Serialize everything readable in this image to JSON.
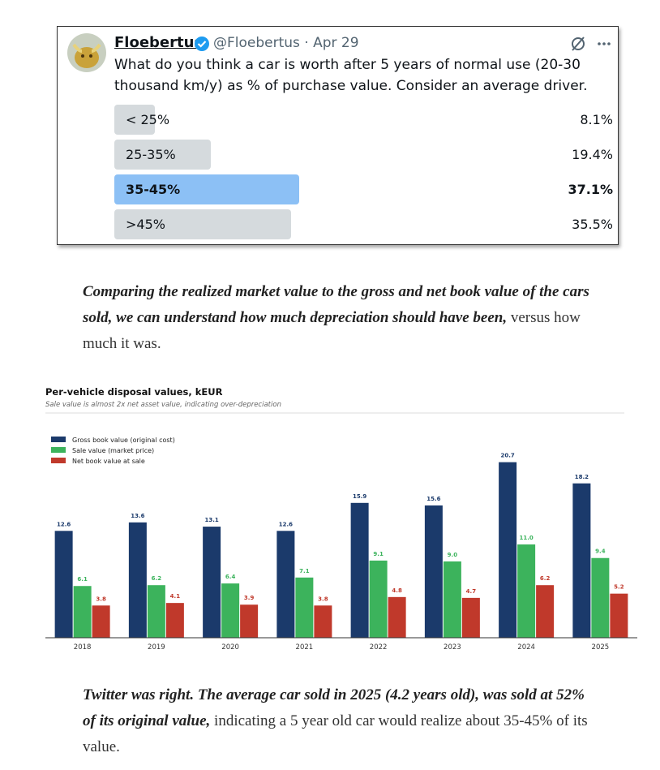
{
  "tweet": {
    "name": "Floebertus",
    "meta": "@Floebertus · Apr 29",
    "text": "What do you think a car is worth after 5 years of normal use (20-30 thousand km/y) as % of purchase value. Consider an average driver.",
    "poll": {
      "labels": [
        "< 25%",
        "25-35%",
        "35-45%",
        ">45%"
      ],
      "values": [
        8.1,
        19.4,
        37.1,
        35.5
      ],
      "value_labels": [
        "8.1%",
        "19.4%",
        "37.1%",
        "35.5%"
      ],
      "bar_color": "#d5dadd",
      "leading_color": "#8cc0f5"
    }
  },
  "paragraphs": [
    {
      "emphasis": "Comparing the realized market value to the gross and net book value of the cars sold, we can understand how much depreciation should have been,",
      "text": "versus how much it was."
    },
    {
      "emphasis": "Twitter was right. The average car sold in 2025 (4.2 years old), was sold at 52% of its original value,",
      "text": "indicating a 5 year old car would realize about 35-45% of its value."
    }
  ],
  "chart_data": {
    "type": "bar",
    "title": "Per-vehicle disposal values, kEUR",
    "subtitle": "Sale value is almost 2x net asset value, indicating over-depreciation",
    "categories": [
      "2018",
      "2019",
      "2020",
      "2021",
      "2022",
      "2023",
      "2024",
      "2025"
    ],
    "series": [
      {
        "name": "Gross book value (original cost)",
        "color": "#1b3a6b",
        "values": [
          12.6,
          13.6,
          13.1,
          12.6,
          15.9,
          15.6,
          20.7,
          18.2
        ],
        "value_labels": [
          "12.6",
          "13.6",
          "13.1",
          "12.6",
          "15.9",
          "15.6",
          "20.7",
          "18.2"
        ]
      },
      {
        "name": "Sale value (market price)",
        "color": "#3cb35c",
        "values": [
          6.1,
          6.2,
          6.4,
          7.1,
          9.1,
          9,
          11,
          9.4
        ],
        "value_labels": [
          "6.1",
          "6.2",
          "6.4",
          "7.1",
          "9.1",
          "9.0",
          "11.0",
          "9.4"
        ]
      },
      {
        "name": "Net book value at sale",
        "color": "#c0392b",
        "values": [
          3.8,
          4.1,
          3.9,
          3.8,
          4.8,
          4.7,
          6.2,
          5.2
        ],
        "value_labels": [
          "3.8",
          "4.1",
          "3.9",
          "3.8",
          "4.8",
          "4.7",
          "6.2",
          "5.2"
        ]
      }
    ],
    "ylim": [
      0,
      26.5
    ],
    "legend": "upper left",
    "grid": false
  }
}
